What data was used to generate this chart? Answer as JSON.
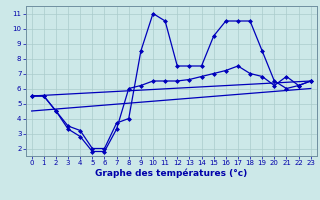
{
  "title": "Graphe des températures (°c)",
  "background_color": "#cce8e8",
  "line_color": "#0000bb",
  "grid_color": "#aacccc",
  "ylim": [
    1.5,
    11.5
  ],
  "xlim": [
    -0.5,
    23.5
  ],
  "yticks": [
    2,
    3,
    4,
    5,
    6,
    7,
    8,
    9,
    10,
    11
  ],
  "xticks": [
    0,
    1,
    2,
    3,
    4,
    5,
    6,
    7,
    8,
    9,
    10,
    11,
    12,
    13,
    14,
    15,
    16,
    17,
    18,
    19,
    20,
    21,
    22,
    23
  ],
  "series": [
    {
      "x": [
        0,
        1,
        2,
        3,
        4,
        5,
        6,
        7,
        8,
        9,
        10,
        11,
        12,
        13,
        14,
        15,
        16,
        17,
        18,
        19,
        20,
        21,
        22,
        23
      ],
      "y": [
        5.5,
        5.5,
        4.5,
        3.5,
        3.2,
        2.0,
        2.0,
        3.7,
        4.0,
        8.5,
        11.0,
        10.5,
        7.5,
        7.5,
        7.5,
        9.5,
        10.5,
        10.5,
        10.5,
        8.5,
        6.5,
        6.0,
        6.2,
        6.5
      ],
      "marker": "D",
      "markersize": 2.0,
      "linewidth": 0.9
    },
    {
      "x": [
        0,
        1,
        2,
        3,
        4,
        5,
        6,
        7,
        8,
        9,
        10,
        11,
        12,
        13,
        14,
        15,
        16,
        17,
        18,
        19,
        20,
        21,
        22,
        23
      ],
      "y": [
        5.5,
        5.5,
        4.5,
        3.3,
        2.8,
        1.8,
        1.8,
        3.3,
        6.0,
        6.2,
        6.5,
        6.5,
        6.5,
        6.6,
        6.8,
        7.0,
        7.2,
        7.5,
        7.0,
        6.8,
        6.2,
        6.8,
        6.2,
        6.5
      ],
      "marker": "D",
      "markersize": 2.0,
      "linewidth": 0.9
    },
    {
      "x": [
        0,
        23
      ],
      "y": [
        5.5,
        6.5
      ],
      "marker": null,
      "markersize": 0,
      "linewidth": 0.9
    },
    {
      "x": [
        0,
        23
      ],
      "y": [
        4.5,
        6.0
      ],
      "marker": null,
      "markersize": 0,
      "linewidth": 0.9
    }
  ]
}
